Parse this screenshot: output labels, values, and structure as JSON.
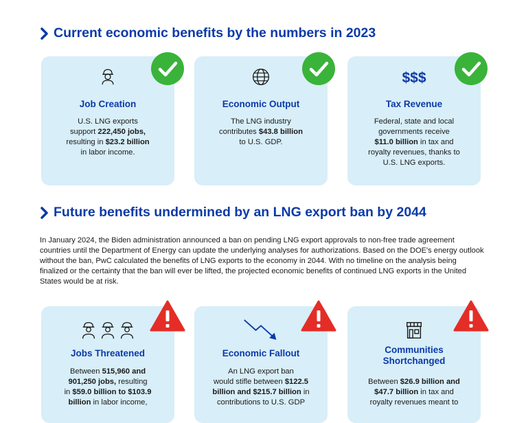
{
  "section1": {
    "heading": "Current economic benefits by the numbers in 2023"
  },
  "cards_top": [
    {
      "title": "Job Creation",
      "body": [
        "U.S. LNG exports",
        "support ",
        "222,450 jobs,",
        "resulting in ",
        "$23.2 billion",
        "in labor income."
      ]
    },
    {
      "title": "Economic Output",
      "body": [
        "The LNG industry",
        "contributes ",
        "$43.8 billion",
        "to U.S. GDP."
      ]
    },
    {
      "symbol": "$$$",
      "title": "Tax Revenue",
      "body": [
        "Federal, state and local",
        "governments receive",
        "$11.0 billion",
        " in tax and",
        "royalty revenues, thanks to",
        "U.S. LNG exports."
      ]
    }
  ],
  "section2": {
    "heading": "Future benefits undermined by an LNG export ban by 2044",
    "paragraph": "In January 2024, the Biden administration announced a ban on pending LNG export approvals to non-free trade agreement countries until the Department of Energy can update the underlying analyses for authorizations. Based on the DOE's energy outlook without the ban, PwC calculated the benefits of LNG exports to the economy in 2044. With no timeline on the analysis being finalized or the certainty that the ban will ever be lifted, the projected economic benefits of continued LNG exports in the United States would be at risk."
  },
  "cards_bottom": [
    {
      "title": "Jobs Threatened",
      "body": [
        "Between ",
        "515,960 and",
        "901,250 jobs,",
        " resulting",
        "in ",
        "$59.0 billion to $103.9",
        "billion",
        " in labor income,"
      ]
    },
    {
      "title": "Economic Fallout",
      "body": [
        "An LNG export ban",
        "would stifle between ",
        "$122.5",
        "billion and $215.7 billion",
        " in",
        "contributions to U.S. GDP"
      ]
    },
    {
      "title_line1": "Communities",
      "title_line2": "Shortchanged",
      "body": [
        "Between ",
        "$26.9 billion and",
        "$47.7 billion",
        " in tax and",
        "royalty revenues meant to"
      ]
    }
  ],
  "colors": {
    "accent_blue": "#0b3aa8",
    "card_bg": "#d8eef8",
    "check_green": "#3ab33a",
    "warning_red": "#e52d27"
  },
  "icons": [
    "worker-icon",
    "globe-icon",
    "check-icon",
    "warning-icon",
    "workers-group-icon",
    "downtrend-arrow-icon",
    "storefront-icon"
  ]
}
